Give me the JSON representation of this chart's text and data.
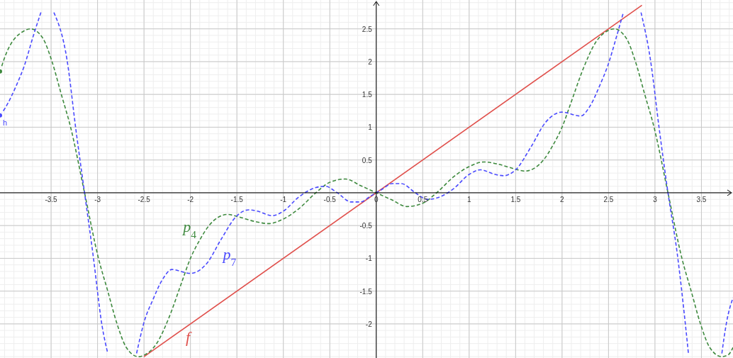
{
  "chart_data": {
    "type": "line",
    "xlim": [
      -4.05,
      3.84
    ],
    "ylim": [
      -2.52,
      2.94
    ],
    "xticks": [
      -3.5,
      -3,
      -2.5,
      -2,
      -1.5,
      -1,
      -0.5,
      0,
      0.5,
      1,
      1.5,
      2,
      2.5,
      3,
      3.5
    ],
    "yticks": [
      -2,
      -1.5,
      -1,
      -0.5,
      {
        "value": 0,
        "label": null
      },
      0.5,
      1,
      1.5,
      2,
      2.5
    ],
    "grid": true,
    "marker": "none",
    "annotations": [
      {
        "text": "h",
        "x": -4.05,
        "y": 1.18
      }
    ],
    "series": [
      {
        "name": "f",
        "color": "#e0504c",
        "line_style": "solid",
        "x": [
          -2.5,
          2.86
        ],
        "values": [
          -2.5,
          2.86
        ]
      },
      {
        "name": "p$_{4}$",
        "color": "#3f8a3f",
        "line_style": "dashed",
        "x": [
          -4.05,
          -3.99,
          -3.79,
          -3.72,
          -3.59,
          -3.49,
          -3.39,
          -3.29,
          -3.14,
          -2.99,
          -2.89,
          -2.79,
          -2.69,
          -2.56,
          -2.49,
          -2.36,
          -2.23,
          -2.1,
          -2,
          -1.9,
          -1.8,
          -1.6,
          -1.5,
          -1.3,
          -1.16,
          -1,
          -0.83,
          -0.65,
          -0.5,
          -0.33,
          -0.17,
          0,
          0.17,
          0.33,
          0.5,
          0.65,
          0.83,
          1,
          1.16,
          1.3,
          1.5,
          1.6,
          1.8,
          1.9,
          2,
          2.1,
          2.23,
          2.36,
          2.49,
          2.56,
          2.69,
          2.79,
          2.89,
          2.99,
          3.14,
          3.29,
          3.39,
          3.49,
          3.59,
          3.72,
          3.79,
          3.84
        ],
        "values": [
          1.85,
          2.1,
          2.47,
          2.5,
          2.36,
          2,
          1.5,
          1,
          0,
          -1,
          -1.5,
          -2,
          -2.36,
          -2.5,
          -2.47,
          -2.29,
          -1.9,
          -1.39,
          -1,
          -0.72,
          -0.5,
          -0.33,
          -0.36,
          -0.44,
          -0.47,
          -0.4,
          -0.24,
          0,
          0.16,
          0.21,
          0.11,
          0,
          -0.11,
          -0.21,
          -0.16,
          0,
          0.24,
          0.4,
          0.47,
          0.44,
          0.36,
          0.33,
          0.5,
          0.72,
          1,
          1.39,
          1.9,
          2.29,
          2.47,
          2.5,
          2.36,
          2,
          1.5,
          1,
          0,
          -1,
          -1.5,
          -2,
          -2.36,
          -2.5,
          -2.47,
          -2.36
        ]
      },
      {
        "name": "p$_{7}$",
        "color": "#4a4aff",
        "line_style": "dashed",
        "x": [
          -4.05,
          -4,
          -3.87,
          -3.79,
          -3.69,
          -3.61,
          -3.53,
          -3.47,
          -3.33,
          -3.23,
          -3.14,
          -3.05,
          -2.95,
          -2.89,
          -2.75,
          -2.58,
          -2.49,
          -2.41,
          -2.3,
          -2.2,
          -2,
          -1.82,
          -1.67,
          -1.5,
          -1.37,
          -1.28,
          -1.12,
          -1,
          -0.83,
          -0.65,
          -0.55,
          -0.42,
          -0.27,
          -0.17,
          -0.06,
          0,
          0.06,
          0.17,
          0.27,
          0.42,
          0.55,
          0.65,
          0.83,
          1,
          1.12,
          1.28,
          1.37,
          1.5,
          1.67,
          1.82,
          2,
          2.2,
          2.3,
          2.41,
          2.49,
          2.59,
          2.66,
          2.77,
          2.85,
          2.95,
          3.05,
          3.14,
          3.24,
          3.33,
          3.36,
          3.54,
          3.72,
          3.77,
          3.84
        ],
        "values": [
          1.18,
          1.28,
          1.65,
          1.93,
          2.4,
          2.75,
          null,
          2.75,
          2.04,
          0.93,
          0,
          -0.93,
          -2.04,
          -2.45,
          null,
          -2.45,
          -1.93,
          -1.65,
          -1.32,
          -1.17,
          -1.23,
          -1.07,
          -0.71,
          -0.35,
          -0.26,
          -0.28,
          -0.35,
          -0.28,
          -0.06,
          0.08,
          0.1,
          0,
          -0.14,
          -0.14,
          -0.05,
          0,
          0.05,
          0.14,
          0.14,
          0,
          -0.1,
          -0.08,
          0.06,
          0.28,
          0.35,
          0.28,
          0.26,
          0.35,
          0.71,
          1.07,
          1.23,
          1.17,
          1.32,
          1.65,
          1.93,
          2.4,
          2.75,
          null,
          2.75,
          2.04,
          0.93,
          0,
          -0.93,
          -2.04,
          -2.45,
          null,
          -2.45,
          -1.98,
          -1.6
        ]
      }
    ]
  }
}
